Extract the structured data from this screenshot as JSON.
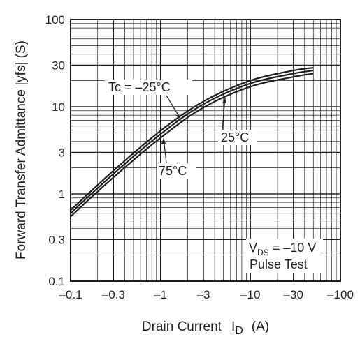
{
  "chart_data": {
    "type": "line",
    "title": "",
    "xlabel": "Drain Current",
    "xlabel_symbol": "I",
    "xlabel_sub": "D",
    "xlabel_unit": "(A)",
    "ylabel": "Forward Transfer Admittance |yfs| (S)",
    "xscale": "log",
    "yscale": "log",
    "xlim": [
      -0.1,
      -100
    ],
    "ylim": [
      0.1,
      100
    ],
    "grid": true,
    "x_ticks": [
      -0.1,
      -0.3,
      -1,
      -3,
      -10,
      -30,
      -100
    ],
    "x_tick_labels": [
      "–0.1",
      "–0.3",
      "–1",
      "–3",
      "–10",
      "–30",
      "–100"
    ],
    "y_ticks": [
      0.1,
      0.3,
      1,
      3,
      10,
      30,
      100
    ],
    "y_tick_labels": [
      "0.1",
      "0.3",
      "1",
      "3",
      "10",
      "30",
      "100"
    ],
    "series": [
      {
        "name": "Tc = –25°C",
        "x": [
          -0.1,
          -0.3,
          -1,
          -3,
          -10,
          -30,
          -50
        ],
        "y": [
          0.65,
          1.85,
          5.3,
          11.5,
          20,
          26,
          28
        ]
      },
      {
        "name": "25°C",
        "x": [
          -0.1,
          -0.3,
          -1,
          -3,
          -10,
          -30,
          -50
        ],
        "y": [
          0.6,
          1.7,
          4.85,
          10.7,
          18.5,
          24,
          26
        ]
      },
      {
        "name": "75°C",
        "x": [
          -0.1,
          -0.3,
          -1,
          -3,
          -10,
          -30,
          -50
        ],
        "y": [
          0.55,
          1.55,
          4.4,
          9.8,
          17,
          22,
          24
        ]
      }
    ],
    "annotations": {
      "tc_label": "Tc = –25°C",
      "label_25": "25°C",
      "label_75": "75°C",
      "vds_label": "V",
      "vds_sub": "DS",
      "vds_value": "= –10 V",
      "pulse": "Pulse Test"
    },
    "line_color": "#231f20"
  }
}
